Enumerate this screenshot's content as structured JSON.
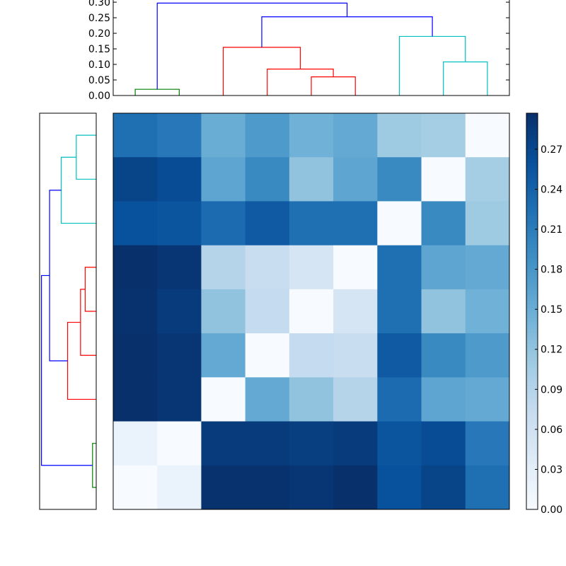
{
  "chart_data": [
    {
      "type": "dendrogram",
      "position": "top",
      "orientation": "top",
      "ylim": [
        0,
        0.307
      ],
      "yticks": [
        "0.00",
        "0.05",
        "0.10",
        "0.15",
        "0.20",
        "0.25",
        "0.30"
      ],
      "leaf_count": 9,
      "merges": [
        {
          "a": 0,
          "b": 1,
          "height": 0.02,
          "color": "#008000"
        },
        {
          "a": 4,
          "b": 5,
          "height": 0.06,
          "color": "#ff0000"
        },
        {
          "a": 3,
          "b": 10,
          "height": 0.085,
          "color": "#ff0000"
        },
        {
          "a": 2,
          "b": 11,
          "height": 0.155,
          "color": "#ff0000"
        },
        {
          "a": 7,
          "b": 8,
          "height": 0.108,
          "color": "#00bfbf"
        },
        {
          "a": 6,
          "b": 13,
          "height": 0.19,
          "color": "#00bfbf"
        },
        {
          "a": 12,
          "b": 14,
          "height": 0.253,
          "color": "#0000ff"
        },
        {
          "a": 9,
          "b": 15,
          "height": 0.297,
          "color": "#0000ff"
        }
      ]
    },
    {
      "type": "dendrogram",
      "position": "left",
      "orientation": "left",
      "leaf_order": "bottom-to-top",
      "xlim": [
        0.307,
        0
      ],
      "same_linkage_as": "top"
    },
    {
      "type": "heatmap",
      "colormap": "Blues",
      "vmin": 0,
      "vmax": 0.297,
      "rows": 9,
      "cols": 9,
      "values": [
        [
          0.225,
          0.215,
          0.15,
          0.175,
          0.145,
          0.155,
          0.11,
          0.105,
          0
        ],
        [
          0.275,
          0.265,
          0.16,
          0.195,
          0.12,
          0.16,
          0.195,
          0,
          0.105
        ],
        [
          0.26,
          0.255,
          0.23,
          0.25,
          0.225,
          0.225,
          0,
          0.195,
          0.11
        ],
        [
          0.297,
          0.29,
          0.09,
          0.07,
          0.05,
          0,
          0.225,
          0.16,
          0.155
        ],
        [
          0.295,
          0.285,
          0.12,
          0.075,
          0,
          0.05,
          0.225,
          0.12,
          0.145
        ],
        [
          0.297,
          0.29,
          0.155,
          0,
          0.075,
          0.07,
          0.25,
          0.195,
          0.175
        ],
        [
          0.297,
          0.29,
          0,
          0.155,
          0.12,
          0.09,
          0.23,
          0.16,
          0.155
        ],
        [
          0.02,
          0,
          0.285,
          0.285,
          0.28,
          0.285,
          0.255,
          0.265,
          0.215
        ],
        [
          0,
          0.02,
          0.295,
          0.295,
          0.29,
          0.297,
          0.26,
          0.275,
          0.225
        ]
      ]
    },
    {
      "type": "colorbar",
      "colormap": "Blues",
      "range": [
        0,
        0.297
      ],
      "ticks": [
        "0.00",
        "0.03",
        "0.06",
        "0.09",
        "0.12",
        "0.15",
        "0.18",
        "0.21",
        "0.24",
        "0.27"
      ]
    }
  ]
}
